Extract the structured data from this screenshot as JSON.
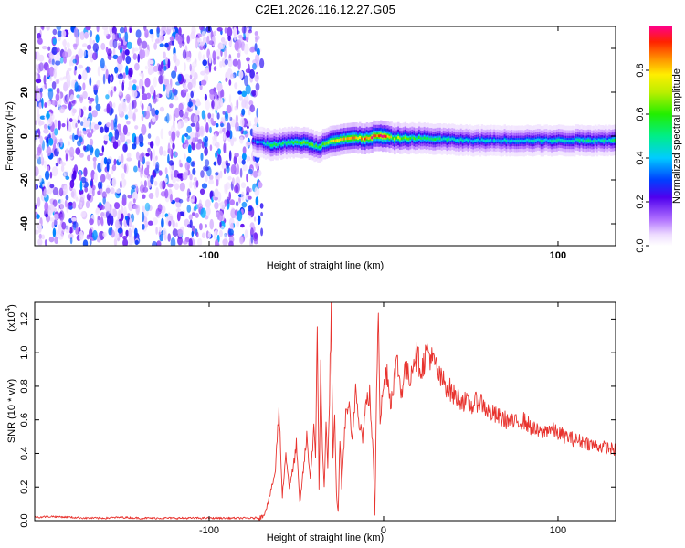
{
  "title": "C2E1.2026.116.12.27.G05",
  "colorbar": {
    "label": "Normalized spectral amplitude",
    "ticks": [
      "0.0",
      "0.2",
      "0.4",
      "0.6",
      "0.8"
    ],
    "range": [
      0,
      1
    ]
  },
  "chart_data": [
    {
      "type": "heatmap",
      "title": "C2E1.2026.116.12.27.G05",
      "xlabel": "Height of straight line (km)",
      "ylabel": "Frequency (Hz)",
      "xlim": [
        -200,
        133
      ],
      "ylim": [
        -50,
        50
      ],
      "xticks": [
        "-100",
        "100"
      ],
      "yticks": [
        "-40",
        "-20",
        "0",
        "20",
        "40"
      ],
      "noise_region_x": [
        -200,
        -75
      ],
      "noise_level": 0.15,
      "ridge": {
        "x": [
          -75,
          -65,
          -55,
          -45,
          -38,
          -30,
          -20,
          -10,
          -5,
          0,
          5,
          20,
          50,
          100,
          133
        ],
        "freq": [
          -2,
          -4,
          -3,
          -3,
          -5,
          -2,
          -1,
          -1,
          0,
          0,
          -1,
          -1,
          -2,
          -2,
          -2
        ],
        "peak_amplitude": [
          0.3,
          0.5,
          0.55,
          0.6,
          0.55,
          0.7,
          0.8,
          0.9,
          0.95,
          0.9,
          0.7,
          0.55,
          0.4,
          0.45,
          0.5
        ]
      }
    },
    {
      "type": "line",
      "xlabel": "Height of straight line (km)",
      "ylabel": "SNR (10 * v/v)",
      "yscale_label": "(x10",
      "yscale_exp": "4",
      "xlim": [
        -200,
        133
      ],
      "ylim": [
        0,
        1.3
      ],
      "xticks": [
        "-100",
        "0",
        "100"
      ],
      "yticks": [
        "0.0",
        "0.2",
        "0.4",
        "0.6",
        "0.8",
        "1.0",
        "1.2"
      ],
      "series": [
        {
          "name": "SNR",
          "color": "#e8332e",
          "x": [
            -200,
            -190,
            -180,
            -170,
            -160,
            -150,
            -140,
            -130,
            -120,
            -110,
            -100,
            -90,
            -80,
            -75,
            -70,
            -68,
            -66,
            -64,
            -62,
            -60,
            -58,
            -56,
            -54,
            -52,
            -50,
            -48,
            -46,
            -44,
            -42,
            -40,
            -39,
            -38,
            -37,
            -36,
            -35,
            -34,
            -33,
            -32,
            -31,
            -30,
            -29,
            -28,
            -27,
            -26,
            -25,
            -24,
            -22,
            -20,
            -18,
            -16,
            -14,
            -12,
            -10,
            -8,
            -6,
            -5,
            -4,
            -3,
            -2,
            -1,
            0,
            2,
            4,
            6,
            8,
            10,
            12,
            15,
            18,
            20,
            22,
            25,
            28,
            30,
            32,
            35,
            38,
            40,
            45,
            50,
            55,
            60,
            65,
            70,
            75,
            80,
            85,
            90,
            95,
            100,
            105,
            110,
            115,
            120,
            125,
            130,
            133
          ],
          "y": [
            0.02,
            0.025,
            0.02,
            0.015,
            0.015,
            0.02,
            0.015,
            0.015,
            0.015,
            0.015,
            0.015,
            0.015,
            0.015,
            0.015,
            0.02,
            0.05,
            0.12,
            0.2,
            0.3,
            0.67,
            0.15,
            0.4,
            0.2,
            0.3,
            0.45,
            0.1,
            0.3,
            0.5,
            0.25,
            0.55,
            0.35,
            1.2,
            0.2,
            0.9,
            0.4,
            0.2,
            0.6,
            0.3,
            0.75,
            1.25,
            0.35,
            0.6,
            0.15,
            0.05,
            0.5,
            0.2,
            0.6,
            0.7,
            0.45,
            0.8,
            0.6,
            0.5,
            0.7,
            0.75,
            0.4,
            0.02,
            0.8,
            1.32,
            0.6,
            0.7,
            0.8,
            0.9,
            0.7,
            0.85,
            0.95,
            0.75,
            0.9,
            0.85,
            1.0,
            0.95,
            0.9,
            1.02,
            0.95,
            0.92,
            0.85,
            0.82,
            0.78,
            0.75,
            0.72,
            0.68,
            0.72,
            0.65,
            0.62,
            0.6,
            0.58,
            0.6,
            0.55,
            0.52,
            0.55,
            0.52,
            0.5,
            0.48,
            0.47,
            0.45,
            0.44,
            0.43,
            0.42
          ]
        }
      ]
    }
  ]
}
